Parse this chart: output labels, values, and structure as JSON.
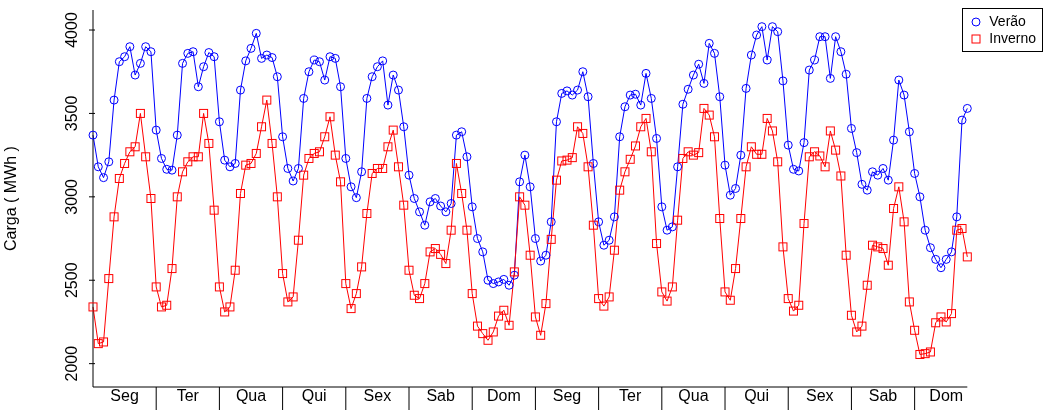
{
  "chart_data": {
    "type": "line",
    "ylabel": "Carga ( MWh )",
    "legend": "top right",
    "ylim": [
      1860,
      4120
    ],
    "yticks": [
      2000,
      2500,
      3000,
      3500,
      4000
    ],
    "categories": [
      null,
      null,
      null,
      null,
      null,
      null,
      "Seg",
      null,
      null,
      null,
      null,
      null,
      null,
      null,
      null,
      null,
      null,
      null,
      "Ter",
      null,
      null,
      null,
      null,
      null,
      null,
      null,
      null,
      null,
      null,
      null,
      "Qua",
      null,
      null,
      null,
      null,
      null,
      null,
      null,
      null,
      null,
      null,
      null,
      "Qui",
      null,
      null,
      null,
      null,
      null,
      null,
      null,
      null,
      null,
      null,
      null,
      "Sex",
      null,
      null,
      null,
      null,
      null,
      null,
      null,
      null,
      null,
      null,
      null,
      "Sab",
      null,
      null,
      null,
      null,
      null,
      null,
      null,
      null,
      null,
      null,
      null,
      "Dom",
      null,
      null,
      null,
      null,
      null,
      null,
      null,
      null,
      null,
      null,
      null,
      "Seg",
      null,
      null,
      null,
      null,
      null,
      null,
      null,
      null,
      null,
      null,
      null,
      "Ter",
      null,
      null,
      null,
      null,
      null,
      null,
      null,
      null,
      null,
      null,
      null,
      "Qua",
      null,
      null,
      null,
      null,
      null,
      null,
      null,
      null,
      null,
      null,
      null,
      "Qui",
      null,
      null,
      null,
      null,
      null,
      null,
      null,
      null,
      null,
      null,
      null,
      "Sex",
      null,
      null,
      null,
      null,
      null,
      null,
      null,
      null,
      null,
      null,
      null,
      "Sab",
      null,
      null,
      null,
      null,
      null,
      null,
      null,
      null,
      null,
      null,
      null,
      "Dom",
      null,
      null,
      null,
      null
    ],
    "series": [
      {
        "name": "Verão",
        "color": "#0000ff",
        "marker": "circle",
        "values": [
          3370,
          3180,
          3115,
          3210,
          3580,
          3810,
          3840,
          3900,
          3730,
          3800,
          3900,
          3870,
          3400,
          3230,
          3165,
          3160,
          3370,
          3800,
          3860,
          3870,
          3660,
          3780,
          3865,
          3840,
          3450,
          3220,
          3180,
          3200,
          3640,
          3815,
          3890,
          3980,
          3830,
          3850,
          3835,
          3720,
          3360,
          3170,
          3095,
          3170,
          3590,
          3750,
          3820,
          3810,
          3700,
          3840,
          3830,
          3660,
          3230,
          3060,
          2995,
          3150,
          3590,
          3720,
          3780,
          3815,
          3550,
          3730,
          3640,
          3420,
          3130,
          2990,
          2910,
          2830,
          2970,
          2990,
          2945,
          2910,
          2960,
          3370,
          3390,
          3240,
          2940,
          2750,
          2670,
          2500,
          2480,
          2490,
          2505,
          2470,
          2530,
          3090,
          3250,
          3060,
          2750,
          2615,
          2650,
          2850,
          3450,
          3620,
          3635,
          3610,
          3640,
          3750,
          3600,
          3200,
          2850,
          2710,
          2740,
          2880,
          3360,
          3540,
          3610,
          3615,
          3550,
          3740,
          3590,
          3350,
          2940,
          2800,
          2820,
          3180,
          3555,
          3645,
          3730,
          3795,
          3680,
          3920,
          3860,
          3600,
          3190,
          3010,
          3050,
          3250,
          3650,
          3850,
          3970,
          4020,
          3820,
          4020,
          3990,
          3695,
          3310,
          3165,
          3155,
          3325,
          3760,
          3820,
          3960,
          3960,
          3710,
          3960,
          3870,
          3735,
          3410,
          3265,
          3075,
          3040,
          3150,
          3130,
          3170,
          3100,
          3340,
          3700,
          3610,
          3390,
          3140,
          3000,
          2800,
          2695,
          2625,
          2575,
          2625,
          2670,
          2880,
          3460,
          3530
        ]
      },
      {
        "name": "Inverno",
        "color": "#ff0000",
        "marker": "square",
        "values": [
          2340,
          2120,
          2130,
          2510,
          2880,
          3110,
          3200,
          3270,
          3300,
          3500,
          3240,
          2990,
          2460,
          2340,
          2350,
          2570,
          3000,
          3150,
          3210,
          3240,
          3240,
          3500,
          3320,
          2920,
          2460,
          2310,
          2340,
          2560,
          3020,
          3190,
          3200,
          3260,
          3420,
          3580,
          3320,
          3000,
          2540,
          2370,
          2400,
          2740,
          3130,
          3230,
          3260,
          3270,
          3360,
          3480,
          3250,
          3090,
          2480,
          2330,
          2420,
          2580,
          2900,
          3140,
          3170,
          3170,
          3300,
          3400,
          3180,
          2950,
          2560,
          2410,
          2390,
          2480,
          2670,
          2690,
          2655,
          2600,
          2800,
          3200,
          3020,
          2800,
          2420,
          2225,
          2180,
          2140,
          2190,
          2285,
          2320,
          2230,
          2550,
          3000,
          2950,
          2650,
          2280,
          2170,
          2360,
          2745,
          3100,
          3215,
          3220,
          3235,
          3420,
          3380,
          3180,
          2830,
          2390,
          2345,
          2400,
          2680,
          3040,
          3150,
          3225,
          3305,
          3420,
          3470,
          3270,
          2720,
          2430,
          2375,
          2460,
          2860,
          3230,
          3270,
          3250,
          3265,
          3530,
          3490,
          3360,
          2870,
          2430,
          2380,
          2570,
          2870,
          3180,
          3300,
          3255,
          3255,
          3470,
          3395,
          3210,
          2700,
          2390,
          2315,
          2350,
          2840,
          3240,
          3270,
          3245,
          3180,
          3395,
          3280,
          3125,
          2650,
          2290,
          2190,
          2225,
          2470,
          2710,
          2700,
          2690,
          2590,
          2930,
          3060,
          2850,
          2370,
          2200,
          2055,
          2060,
          2070,
          2245,
          2280,
          2250,
          2300,
          2800,
          2810,
          2640
        ]
      }
    ]
  }
}
